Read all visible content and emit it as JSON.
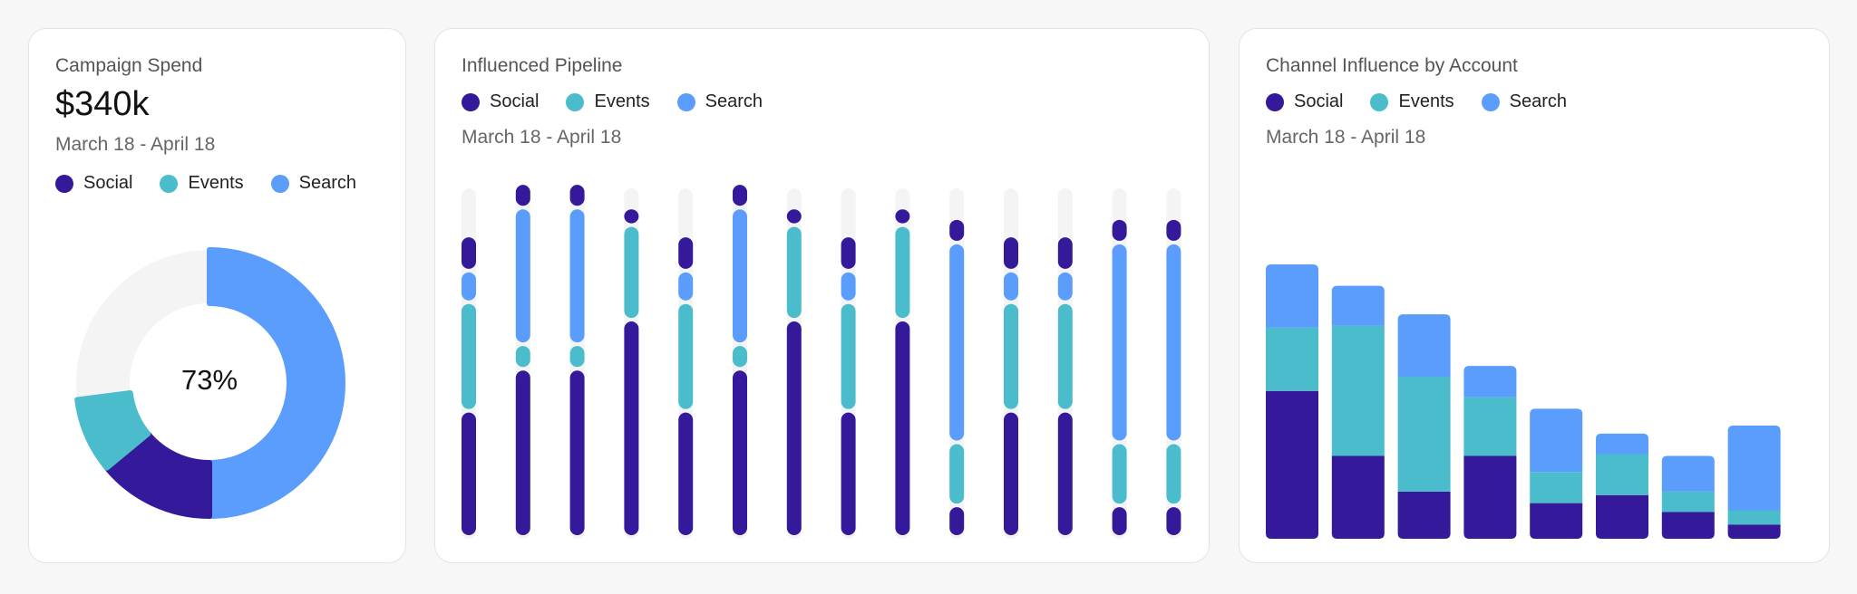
{
  "colors": {
    "social": "#34199a",
    "events": "#4bbccc",
    "search": "#5a9dfd",
    "track": "#f4f4f4"
  },
  "legend": [
    {
      "name": "Social",
      "color_key": "social"
    },
    {
      "name": "Events",
      "color_key": "events"
    },
    {
      "name": "Search",
      "color_key": "search"
    }
  ],
  "spend": {
    "title": "Campaign Spend",
    "value": "$340k",
    "daterange": "March 18 - April 18",
    "center_label": "73%",
    "chart_data": {
      "type": "pie",
      "variant": "donut",
      "filled_fraction": 0.73,
      "segments": [
        {
          "name": "Search",
          "value": 0.5
        },
        {
          "name": "Social",
          "value": 0.14
        },
        {
          "name": "Events",
          "value": 0.09
        }
      ],
      "track_color": "#f4f4f4"
    }
  },
  "pipeline": {
    "title": "Influenced Pipeline",
    "daterange": "March 18 - April 18",
    "chart_data": {
      "type": "bar",
      "stacked": true,
      "ylim": [
        0,
        1
      ],
      "track": true,
      "series": [
        {
          "name": "Social",
          "values": [
            0.36,
            0.48,
            0.48,
            0.62,
            0.36,
            0.48,
            0.62,
            0.36,
            0.62,
            0.09,
            0.36,
            0.36,
            0.09,
            0.09
          ]
        },
        {
          "name": "Events",
          "values": [
            0.31,
            0.07,
            0.07,
            0.27,
            0.31,
            0.07,
            0.27,
            0.31,
            0.27,
            0.18,
            0.31,
            0.31,
            0.18,
            0.18
          ]
        },
        {
          "name": "Search",
          "values": [
            0.09,
            0.39,
            0.39,
            0,
            0.09,
            0.39,
            0,
            0.09,
            0,
            0.57,
            0.09,
            0.09,
            0.57,
            0.57
          ]
        },
        {
          "name": "Social",
          "values": [
            0.1,
            0.07,
            0.07,
            0.05,
            0.1,
            0.07,
            0.05,
            0.1,
            0.05,
            0.07,
            0.1,
            0.1,
            0.07,
            0.07
          ]
        }
      ]
    }
  },
  "channel": {
    "title": "Channel Influence by Account",
    "daterange": "March 18 - April 18",
    "chart_data": {
      "type": "bar",
      "stacked": true,
      "ylim": [
        0,
        310
      ],
      "series": [
        {
          "name": "Social",
          "values": [
            166,
            93,
            53,
            93,
            40,
            49,
            30,
            16
          ]
        },
        {
          "name": "Events",
          "values": [
            71,
            146,
            129,
            66,
            35,
            46,
            23,
            16
          ]
        },
        {
          "name": "Search",
          "values": [
            71,
            45,
            70,
            35,
            71,
            23,
            40,
            95
          ]
        }
      ]
    }
  }
}
